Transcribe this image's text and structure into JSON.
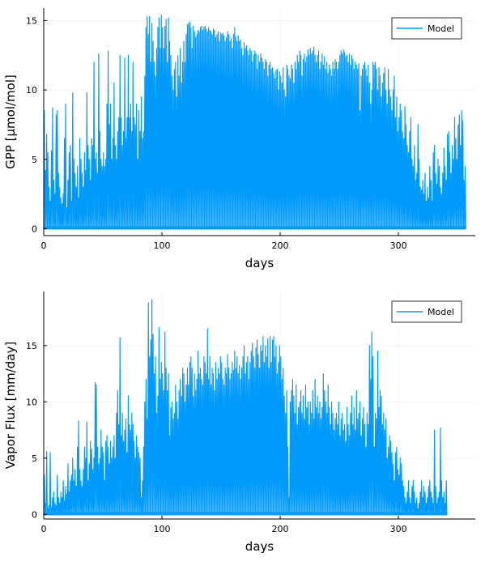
{
  "chart_data": [
    {
      "type": "line",
      "xlabel": "days",
      "ylabel": "GPP [μmol/mol]",
      "xlim": [
        0,
        365
      ],
      "ylim": [
        -0.5,
        15.9
      ],
      "xticks": [
        0,
        100,
        200,
        300
      ],
      "yticks": [
        0,
        5,
        10,
        15
      ],
      "grid": true,
      "legend_position": "top-right",
      "series": [
        {
          "name": "Model",
          "color": "#009AFA",
          "daily_max": [
            8.5,
            4.2,
            6.8,
            5.5,
            3.0,
            2.0,
            5.6,
            8.7,
            3.5,
            2.5,
            8.2,
            8.5,
            4.0,
            3.0,
            2.2,
            1.8,
            2.5,
            6.5,
            9.0,
            1.5,
            3.5,
            5.5,
            6.0,
            2.0,
            9.8,
            5.0,
            4.0,
            3.0,
            4.5,
            2.2,
            6.5,
            5.0,
            4.0,
            3.0,
            5.5,
            4.2,
            9.8,
            6.0,
            5.0,
            3.5,
            6.5,
            6.0,
            12.0,
            5.0,
            5.5,
            4.0,
            12.6,
            7.0,
            5.0,
            4.5,
            5.5,
            4.5,
            5.0,
            9.0,
            12.8,
            7.5,
            9.0,
            5.0,
            6.5,
            10.5,
            6.0,
            5.0,
            7.0,
            8.0,
            12.5,
            8.0,
            6.0,
            7.0,
            12.3,
            6.5,
            8.0,
            12.5,
            8.0,
            9.0,
            7.0,
            12.0,
            8.0,
            7.5,
            9.0,
            5.0,
            8.5,
            7.0,
            9.5,
            6.5,
            7.0,
            11.0,
            14.5,
            15.3,
            14.0,
            15.3,
            12.0,
            14.8,
            13.5,
            12.0,
            11.0,
            13.0,
            14.5,
            15.2,
            13.0,
            15.4,
            14.5,
            13.0,
            14.6,
            15.1,
            12.0,
            15.2,
            13.5,
            12.5,
            11.0,
            10.0,
            11.5,
            12.0,
            9.5,
            12.5,
            11.0,
            13.0,
            10.5,
            12.0,
            13.5,
            12.0,
            14.0,
            14.7,
            14.8,
            14.9,
            14.5,
            13.0,
            14.6,
            14.2,
            13.8,
            14.0,
            14.3,
            14.2,
            14.5,
            14.6,
            14.3,
            14.5,
            14.6,
            14.4,
            14.2,
            14.5,
            14.3,
            14.2,
            14.0,
            14.4,
            14.3,
            13.8,
            14.0,
            14.2,
            13.5,
            14.1,
            14.0,
            14.1,
            13.9,
            13.5,
            13.8,
            14.2,
            14.0,
            13.5,
            13.7,
            13.0,
            14.0,
            14.5,
            13.8,
            13.5,
            13.9,
            13.5,
            13.6,
            13.0,
            12.5,
            13.4,
            13.0,
            13.2,
            12.8,
            12.5,
            13.0,
            12.8,
            12.0,
            12.5,
            12.8,
            12.6,
            11.5,
            12.5,
            12.0,
            12.6,
            12.3,
            12.0,
            11.5,
            12.2,
            12.0,
            11.0,
            11.8,
            12.0,
            11.5,
            11.6,
            11.2,
            10.8,
            11.4,
            11.5,
            10.0,
            11.3,
            11.0,
            10.5,
            11.6,
            10.0,
            9.5,
            11.8,
            11.5,
            11.0,
            10.8,
            11.8,
            11.5,
            10.5,
            12.0,
            11.5,
            12.5,
            12.0,
            12.8,
            12.5,
            11.0,
            12.2,
            12.6,
            12.0,
            12.4,
            12.9,
            12.5,
            13.0,
            12.6,
            12.8,
            13.1,
            12.5,
            12.0,
            12.5,
            12.8,
            11.5,
            12.0,
            12.6,
            11.8,
            12.4,
            11.5,
            12.0,
            11.2,
            11.8,
            11.5,
            11.0,
            12.0,
            11.5,
            12.2,
            12.0,
            11.5,
            12.0,
            12.5,
            12.8,
            12.6,
            12.9,
            12.7,
            12.4,
            12.5,
            12.0,
            12.6,
            11.8,
            12.5,
            12.2,
            11.5,
            12.0,
            11.8,
            11.5,
            11.9,
            8.5,
            11.0,
            11.5,
            11.8,
            12.0,
            11.5,
            11.0,
            11.8,
            10.5,
            9.0,
            10.0,
            12.0,
            11.8,
            12.0,
            11.5,
            10.0,
            11.6,
            11.0,
            9.5,
            10.5,
            11.2,
            11.6,
            10.0,
            9.0,
            11.5,
            10.0,
            9.5,
            8.5,
            10.0,
            11.0,
            8.0,
            9.5,
            7.0,
            8.0,
            9.0,
            8.5,
            7.0,
            6.5,
            8.8,
            7.5,
            6.0,
            5.5,
            7.0,
            8.0,
            5.0,
            4.5,
            6.0,
            3.5,
            4.0,
            7.5,
            5.0,
            3.0,
            2.8,
            3.5,
            2.5,
            4.0,
            2.0,
            3.0,
            2.2,
            4.5,
            3.5,
            2.0,
            5.5,
            6.0,
            4.0,
            3.2,
            5.0,
            4.5,
            3.0,
            2.5,
            4.0,
            5.8,
            4.5,
            3.5,
            6.8,
            7.0,
            5.5,
            4.0,
            6.0,
            5.0,
            8.0,
            6.5,
            5.0,
            7.5,
            8.2,
            6.0,
            8.5,
            7.8,
            3.5,
            4.5
          ]
        }
      ]
    },
    {
      "type": "line",
      "xlabel": "days",
      "ylabel": "Vapor Flux [mm/day]",
      "xlim": [
        0,
        365
      ],
      "ylim": [
        -0.4,
        19.8
      ],
      "xticks": [
        0,
        100,
        200,
        300
      ],
      "yticks": [
        0,
        5,
        10,
        15
      ],
      "grid": true,
      "legend_position": "top-right",
      "series": [
        {
          "name": "Model",
          "color": "#009AFA",
          "daily_max": [
            3.5,
            1.0,
            5.6,
            0.5,
            0.8,
            5.5,
            0.6,
            1.5,
            2.0,
            1.0,
            0.8,
            3.5,
            1.5,
            1.0,
            2.0,
            1.5,
            3.0,
            1.2,
            2.5,
            1.8,
            4.5,
            2.0,
            3.0,
            3.5,
            5.0,
            3.0,
            4.0,
            2.5,
            6.0,
            8.3,
            4.0,
            3.0,
            2.5,
            4.0,
            6.0,
            5.0,
            8.2,
            3.0,
            4.5,
            6.5,
            5.8,
            4.0,
            5.0,
            11.7,
            11.5,
            6.0,
            4.5,
            5.0,
            7.5,
            6.0,
            5.5,
            3.0,
            6.5,
            7.0,
            6.0,
            4.5,
            6.5,
            5.0,
            6.0,
            7.0,
            5.0,
            9.0,
            11.0,
            8.0,
            15.7,
            7.0,
            9.0,
            6.5,
            7.5,
            8.5,
            5.5,
            10.5,
            8.0,
            7.5,
            9.0,
            8.0,
            6.5,
            5.0,
            7.0,
            6.0,
            5.5,
            5.0,
            1.5,
            3.0,
            6.0,
            10.0,
            12.0,
            8.5,
            18.8,
            14.0,
            15.5,
            19.1,
            16.0,
            12.5,
            14.0,
            9.0,
            10.5,
            16.6,
            12.0,
            13.5,
            12.5,
            11.0,
            16.2,
            13.0,
            11.0,
            12.5,
            7.0,
            9.5,
            10.0,
            8.5,
            9.0,
            11.5,
            10.0,
            8.5,
            11.0,
            12.0,
            10.5,
            13.0,
            12.5,
            10.0,
            11.5,
            13.0,
            11.5,
            13.5,
            14.0,
            13.0,
            10.5,
            12.5,
            11.0,
            12.0,
            14.5,
            12.5,
            13.0,
            12.0,
            11.5,
            14.0,
            13.5,
            12.5,
            16.5,
            12.0,
            14.0,
            11.5,
            13.0,
            12.5,
            11.0,
            13.5,
            12.0,
            13.0,
            12.5,
            14.0,
            13.5,
            12.0,
            11.5,
            13.0,
            12.5,
            14.2,
            13.0,
            12.0,
            12.5,
            13.5,
            12.8,
            14.5,
            13.0,
            14.0,
            12.5,
            13.2,
            12.0,
            13.0,
            14.0,
            15.0,
            12.5,
            13.5,
            14.0,
            12.0,
            13.5,
            14.5,
            15.2,
            14.0,
            13.0,
            14.8,
            15.5,
            14.2,
            13.0,
            15.0,
            14.5,
            15.8,
            13.5,
            15.0,
            14.0,
            15.6,
            13.0,
            15.8,
            13.5,
            15.5,
            15.8,
            14.0,
            15.0,
            12.5,
            13.5,
            15.0,
            14.0,
            12.0,
            13.0,
            10.5,
            9.0,
            11.0,
            6.0,
            1.5,
            10.0,
            11.0,
            12.0,
            10.5,
            9.0,
            11.5,
            8.0,
            9.5,
            10.0,
            11.0,
            9.0,
            10.5,
            8.5,
            11.5,
            9.5,
            10.0,
            8.0,
            10.0,
            9.0,
            11.0,
            8.5,
            12.0,
            9.5,
            10.5,
            9.0,
            10.0,
            8.5,
            9.5,
            12.5,
            11.0,
            10.0,
            9.0,
            11.5,
            9.5,
            8.0,
            10.0,
            9.0,
            7.5,
            8.5,
            9.0,
            8.0,
            10.0,
            7.0,
            8.5,
            9.0,
            7.5,
            8.0,
            6.5,
            9.5,
            8.0,
            7.0,
            9.0,
            10.5,
            8.0,
            9.5,
            7.5,
            11.0,
            8.5,
            9.0,
            10.0,
            7.0,
            8.5,
            9.5,
            8.0,
            6.0,
            9.0,
            8.0,
            15.0,
            12.0,
            16.2,
            14.0,
            6.0,
            9.0,
            8.5,
            14.5,
            9.5,
            11.0,
            10.5,
            8.0,
            9.0,
            7.5,
            8.5,
            5.0,
            6.0,
            7.0,
            6.5,
            5.5,
            4.5,
            3.0,
            5.5,
            6.0,
            4.0,
            3.5,
            5.0,
            4.5,
            3.0,
            2.5,
            1.5,
            1.0,
            2.0,
            3.0,
            1.5,
            1.0,
            2.5,
            3.0,
            2.0,
            1.0,
            1.5,
            0.5,
            1.0,
            2.0,
            3.0,
            1.5,
            2.5,
            2.0,
            1.0,
            1.5,
            2.5,
            3.0,
            2.0,
            1.5,
            1.0,
            7.5,
            2.5,
            1.0,
            1.5,
            2.0,
            7.7,
            3.0,
            1.5,
            2.0,
            1.0,
            3.0
          ]
        }
      ]
    }
  ]
}
